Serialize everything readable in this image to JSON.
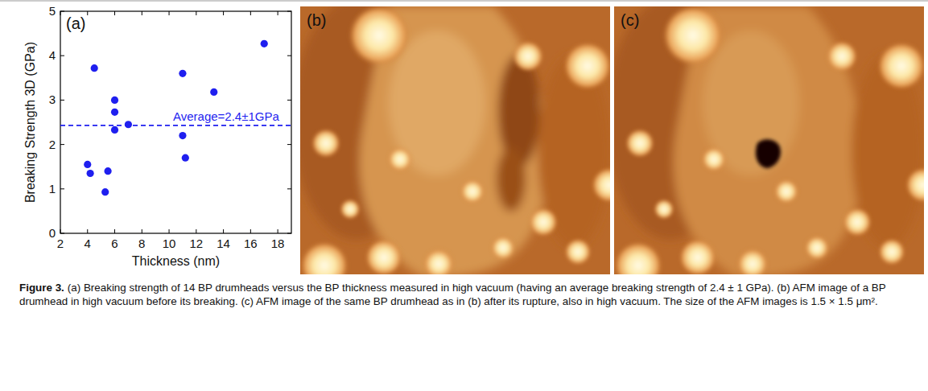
{
  "chart_data": {
    "type": "scatter",
    "panel_label": "(a)",
    "xlabel": "Thickness (nm)",
    "ylabel": "Breaking Strength 3D (GPa)",
    "x": [
      4.0,
      4.2,
      4.5,
      5.3,
      5.5,
      6.0,
      6.0,
      6.0,
      7.0,
      11.0,
      11.0,
      11.2,
      13.3,
      17.0
    ],
    "values": [
      1.55,
      1.35,
      3.72,
      0.93,
      1.4,
      3.0,
      2.73,
      2.33,
      2.45,
      3.6,
      2.2,
      1.7,
      3.18,
      4.27
    ],
    "color": "#1f1fef",
    "marker": "circle",
    "xlim": [
      2,
      19
    ],
    "ylim": [
      0,
      5
    ],
    "xticks": [
      2,
      4,
      6,
      8,
      10,
      12,
      14,
      16,
      18
    ],
    "yticks": [
      0,
      1,
      2,
      3,
      4,
      5
    ],
    "annotations": [
      {
        "text": "Average=2.4±1GPa",
        "y": 2.43,
        "line_style": "dashed"
      }
    ]
  },
  "images": [
    {
      "panel_label": "(b)"
    },
    {
      "panel_label": "(c)"
    }
  ],
  "caption": {
    "label": "Figure 3.",
    "text": "(a) Breaking strength of 14 BP drumheads versus the BP thickness measured in high vacuum (having an average breaking strength of 2.4 ± 1 GPa). (b) AFM image of a BP drumhead in high vacuum before its breaking. (c) AFM image of the same BP drumhead as in (b) after its rupture, also in high vacuum. The size of the AFM images is 1.5 × 1.5 μm²."
  }
}
